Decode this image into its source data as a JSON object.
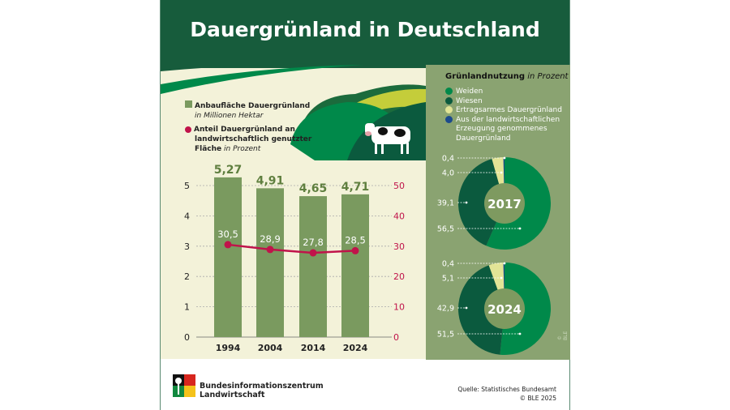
{
  "title": "Dauergrünland in Deutschland",
  "legend_left": {
    "bars_label": "Anbaufläche Dauergrünland",
    "bars_unit": "in Millionen Hektar",
    "line_label_1": "Anteil Dauergrünland an",
    "line_label_2": "landwirtschaftlich genutzter",
    "line_label_3": "Fläche",
    "line_unit": "in Prozent"
  },
  "chart_data": [
    {
      "type": "bar",
      "title": "Anbaufläche Dauergrünland",
      "ylabel": "in Millionen Hektar",
      "categories": [
        "1994",
        "2004",
        "2014",
        "2024"
      ],
      "values": [
        5.27,
        4.91,
        4.65,
        4.71
      ],
      "value_labels": [
        "5,27",
        "4,91",
        "4,65",
        "4,71"
      ],
      "ylim": [
        0,
        5
      ],
      "yticks": [
        "0",
        "1",
        "2",
        "3",
        "4",
        "5"
      ],
      "color": "#7a9a5f"
    },
    {
      "type": "line",
      "title": "Anteil Dauergrünland an landwirtschaftlich genutzter Fläche",
      "ylabel": "in Prozent",
      "categories": [
        "1994",
        "2004",
        "2014",
        "2024"
      ],
      "values": [
        30.5,
        28.9,
        27.8,
        28.5
      ],
      "value_labels": [
        "30,5",
        "28,9",
        "27,8",
        "28,5"
      ],
      "ylim": [
        0,
        50
      ],
      "yticks": [
        "0",
        "10",
        "20",
        "30",
        "40",
        "50"
      ],
      "color": "#c0134a"
    },
    {
      "type": "pie",
      "title": "2017",
      "labels": [
        "Weiden",
        "Wiesen",
        "Ertragsarmes Dauergrünland",
        "Aus der landwirtschaftlichen Erzeugung genommenes Dauergrünland"
      ],
      "values": [
        56.5,
        39.1,
        4.0,
        0.4
      ],
      "value_labels": [
        "56,5",
        "39,1",
        "4,0",
        "0,4"
      ]
    },
    {
      "type": "pie",
      "title": "2024",
      "labels": [
        "Weiden",
        "Wiesen",
        "Ertragsarmes Dauergrünland",
        "Aus der landwirtschaftlichen Erzeugung genommenes Dauergrünland"
      ],
      "values": [
        51.5,
        42.9,
        5.1,
        0.4
      ],
      "value_labels": [
        "51,5",
        "42,9",
        "5,1",
        "0,4"
      ]
    }
  ],
  "right_legend": {
    "title": "Grünlandnutzung",
    "unit": "in Prozent",
    "items": [
      "Weiden",
      "Wiesen",
      "Ertragsarmes Dauergrünland",
      "Aus der landwirtschaftlichen",
      "Erzeugung genommenes",
      "Dauergrünland"
    ]
  },
  "colors": {
    "weiden": "#00894a",
    "wiesen": "#0b5a3e",
    "ertragsarm": "#e2e496",
    "aus": "#1c4a8c",
    "header": "#175c3c"
  },
  "footer": {
    "org_1": "Bundesinformationszentrum",
    "org_2": "Landwirtschaft",
    "source": "Quelle: Statistisches Bundesamt",
    "copyright": "© BLE 2025",
    "side_copyright": "© BLE"
  }
}
